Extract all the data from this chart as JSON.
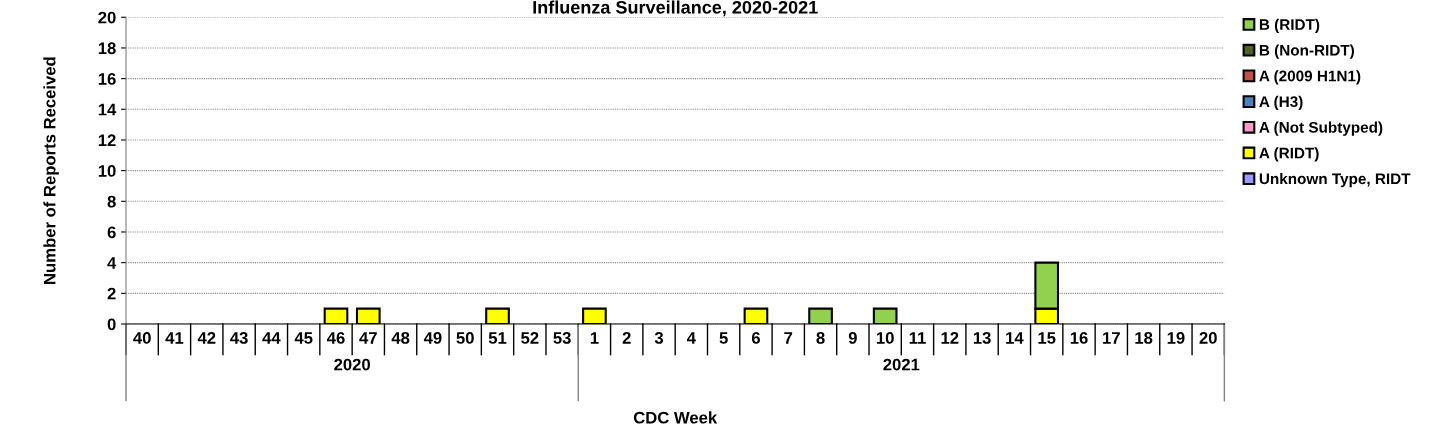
{
  "chart_data": {
    "type": "bar",
    "stacked": true,
    "title": "Influenza Surveillance, 2020-2021",
    "xlabel": "CDC Week",
    "ylabel": "Number of Reports Received",
    "categories": [
      "40",
      "41",
      "42",
      "43",
      "44",
      "45",
      "46",
      "47",
      "48",
      "49",
      "50",
      "51",
      "52",
      "53",
      "1",
      "2",
      "3",
      "4",
      "5",
      "6",
      "7",
      "8",
      "9",
      "10",
      "11",
      "12",
      "13",
      "14",
      "15",
      "16",
      "17",
      "18",
      "19",
      "20"
    ],
    "series": [
      {
        "name": "Unknown Type, RIDT",
        "color": "#9999ff",
        "values": [
          0,
          0,
          0,
          0,
          0,
          0,
          0,
          0,
          0,
          0,
          0,
          0,
          0,
          0,
          0,
          0,
          0,
          0,
          0,
          0,
          0,
          0,
          0,
          0,
          0,
          0,
          0,
          0,
          0,
          0,
          0,
          0,
          0,
          0
        ]
      },
      {
        "name": "A (RIDT)",
        "color": "#ffff00",
        "values": [
          0,
          0,
          0,
          0,
          0,
          0,
          1,
          1,
          0,
          0,
          0,
          1,
          0,
          0,
          1,
          0,
          0,
          0,
          0,
          1,
          0,
          0,
          0,
          0,
          0,
          0,
          0,
          0,
          1,
          0,
          0,
          0,
          0,
          0
        ]
      },
      {
        "name": "A (Not Subtyped)",
        "color": "#ff99cc",
        "values": [
          0,
          0,
          0,
          0,
          0,
          0,
          0,
          0,
          0,
          0,
          0,
          0,
          0,
          0,
          0,
          0,
          0,
          0,
          0,
          0,
          0,
          0,
          0,
          0,
          0,
          0,
          0,
          0,
          0,
          0,
          0,
          0,
          0,
          0
        ]
      },
      {
        "name": "A (H3)",
        "color": "#4f81bd",
        "values": [
          0,
          0,
          0,
          0,
          0,
          0,
          0,
          0,
          0,
          0,
          0,
          0,
          0,
          0,
          0,
          0,
          0,
          0,
          0,
          0,
          0,
          0,
          0,
          0,
          0,
          0,
          0,
          0,
          0,
          0,
          0,
          0,
          0,
          0
        ]
      },
      {
        "name": "A (2009 H1N1)",
        "color": "#c0504d",
        "values": [
          0,
          0,
          0,
          0,
          0,
          0,
          0,
          0,
          0,
          0,
          0,
          0,
          0,
          0,
          0,
          0,
          0,
          0,
          0,
          0,
          0,
          0,
          0,
          0,
          0,
          0,
          0,
          0,
          0,
          0,
          0,
          0,
          0,
          0
        ]
      },
      {
        "name": "B (Non-RIDT)",
        "color": "#4f6228",
        "values": [
          0,
          0,
          0,
          0,
          0,
          0,
          0,
          0,
          0,
          0,
          0,
          0,
          0,
          0,
          0,
          0,
          0,
          0,
          0,
          0,
          0,
          0,
          0,
          0,
          0,
          0,
          0,
          0,
          0,
          0,
          0,
          0,
          0,
          0
        ]
      },
      {
        "name": "B (RIDT)",
        "color": "#92d050",
        "values": [
          0,
          0,
          0,
          0,
          0,
          0,
          0,
          0,
          0,
          0,
          0,
          0,
          0,
          0,
          0,
          0,
          0,
          0,
          0,
          0,
          0,
          1,
          0,
          1,
          0,
          0,
          0,
          0,
          3,
          0,
          0,
          0,
          0,
          0
        ]
      }
    ],
    "ylim": [
      0,
      20
    ],
    "yticks": [
      0,
      2,
      4,
      6,
      8,
      10,
      12,
      14,
      16,
      18,
      20
    ],
    "grid": "y",
    "legend": "top right",
    "annotations": [
      "2020",
      "2021"
    ]
  }
}
